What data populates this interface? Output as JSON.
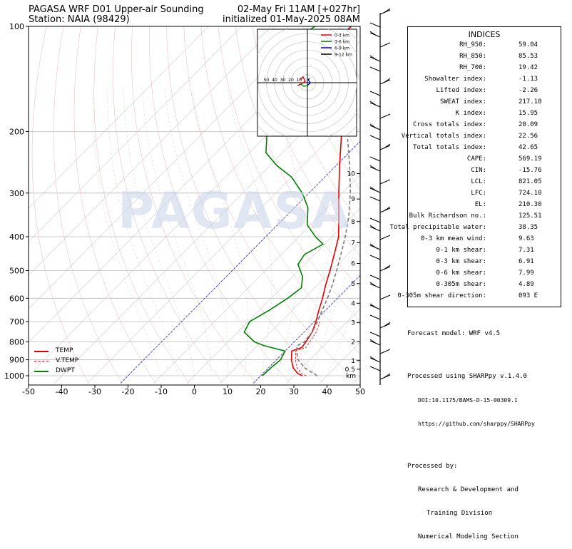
{
  "header": {
    "title_left": "PAGASA WRF D01 Upper-air Sounding",
    "station": "Station: NAIA (98429)",
    "valid": "02-May Fri 11AM [+027hr]",
    "init": "initialized 01-May-2025 08AM"
  },
  "watermark": "PAGASA",
  "chart_data": {
    "type": "line",
    "subtype": "skew-t log-p sounding",
    "xlabel": "",
    "ylabel": "",
    "x_ticks": [
      -50,
      -40,
      -30,
      -20,
      -10,
      0,
      10,
      20,
      30,
      40,
      50
    ],
    "y_ticks": [
      100,
      200,
      300,
      400,
      500,
      600,
      700,
      800,
      900,
      1000
    ],
    "xlim": [
      -50,
      50
    ],
    "ylim": [
      1050,
      100
    ],
    "y_scale": "log",
    "height_km_labels": [
      "0.5",
      "1",
      "2",
      "3",
      "4",
      "5",
      "6",
      "7",
      "8",
      "9",
      "10"
    ],
    "height_km_unit": "km",
    "legend": [
      {
        "name": "TEMP",
        "color": "#e00000",
        "style": "solid"
      },
      {
        "name": "V.TEMP",
        "color": "#e00000",
        "style": "dashed"
      },
      {
        "name": "DWPT",
        "color": "#008000",
        "style": "solid"
      }
    ],
    "legend_position": "bottom-left",
    "series": [
      {
        "name": "TEMP",
        "color": "#e00000",
        "points": [
          [
            1000,
            32.5
          ],
          [
            985,
            30.5
          ],
          [
            950,
            27.5
          ],
          [
            900,
            24.5
          ],
          [
            850,
            22.0
          ],
          [
            830,
            24.0
          ],
          [
            800,
            23.5
          ],
          [
            750,
            22.5
          ],
          [
            700,
            20.5
          ],
          [
            650,
            18.0
          ],
          [
            600,
            15.5
          ],
          [
            550,
            12.5
          ],
          [
            500,
            9.5
          ],
          [
            450,
            6.0
          ],
          [
            400,
            2.0
          ],
          [
            350,
            -4.0
          ],
          [
            300,
            -11.0
          ],
          [
            250,
            -19.0
          ],
          [
            200,
            -28.5
          ],
          [
            180,
            -34.0
          ],
          [
            160,
            -41.0
          ],
          [
            140,
            -49.0
          ],
          [
            120,
            -56.0
          ],
          [
            110,
            -58.0
          ],
          [
            100,
            -57.0
          ]
        ]
      },
      {
        "name": "DWPT",
        "color": "#008000",
        "points": [
          [
            1000,
            20.5
          ],
          [
            950,
            20.7
          ],
          [
            900,
            21.2
          ],
          [
            850,
            20.0
          ],
          [
            820,
            12.0
          ],
          [
            800,
            8.0
          ],
          [
            750,
            2.0
          ],
          [
            700,
            0.5
          ],
          [
            650,
            3.0
          ],
          [
            600,
            5.0
          ],
          [
            560,
            6.0
          ],
          [
            520,
            3.0
          ],
          [
            480,
            -2.0
          ],
          [
            450,
            -3.0
          ],
          [
            420,
            -0.5
          ],
          [
            400,
            -5.0
          ],
          [
            370,
            -11.0
          ],
          [
            330,
            -16.0
          ],
          [
            300,
            -22.0
          ],
          [
            270,
            -30.0
          ],
          [
            250,
            -38.0
          ],
          [
            230,
            -45.0
          ],
          [
            200,
            -51.0
          ],
          [
            170,
            -56.0
          ],
          [
            150,
            -59.0
          ],
          [
            130,
            -63.0
          ],
          [
            120,
            -68.0
          ],
          [
            110,
            -70.0
          ],
          [
            100,
            -68.0
          ]
        ]
      },
      {
        "name": "PARCEL",
        "color": "#7a7a7a",
        "points": [
          [
            1000,
            37.0
          ],
          [
            950,
            31.0
          ],
          [
            900,
            26.5
          ],
          [
            850,
            23.5
          ],
          [
            821,
            22.0
          ],
          [
            800,
            23.0
          ],
          [
            750,
            22.5
          ],
          [
            700,
            21.0
          ],
          [
            650,
            19.0
          ],
          [
            600,
            17.0
          ],
          [
            550,
            14.5
          ],
          [
            500,
            11.5
          ],
          [
            450,
            8.0
          ],
          [
            400,
            4.0
          ],
          [
            350,
            -1.0
          ],
          [
            300,
            -7.5
          ],
          [
            250,
            -16.0
          ],
          [
            210,
            -24.5
          ]
        ]
      }
    ]
  },
  "hodograph": {
    "rings": [
      "10",
      "20",
      "30",
      "40",
      "50"
    ],
    "legend": [
      {
        "name": "0-3 km",
        "color": "#e00000"
      },
      {
        "name": "3-6 km",
        "color": "#008000"
      },
      {
        "name": "6-9 km",
        "color": "#0000cc"
      },
      {
        "name": "9-12 km",
        "color": "#000000"
      }
    ]
  },
  "indices": {
    "title": "INDICES",
    "rows": [
      {
        "k": "RH_950:",
        "v": "59.04"
      },
      {
        "k": "RH_850:",
        "v": "85.53"
      },
      {
        "k": "RH_700:",
        "v": "19.42"
      },
      {
        "k": "Showalter index:",
        "v": "-1.13"
      },
      {
        "k": "Lifted index:",
        "v": "-2.26"
      },
      {
        "k": "SWEAT index:",
        "v": "217.18"
      },
      {
        "k": "K index:",
        "v": "15.95"
      },
      {
        "k": "Cross totals index:",
        "v": "20.09"
      },
      {
        "k": "Vertical totals index:",
        "v": "22.56"
      },
      {
        "k": "Total totals index:",
        "v": "42.65"
      },
      {
        "k": "CAPE:",
        "v": "569.19"
      },
      {
        "k": "CIN:",
        "v": "-15.76"
      },
      {
        "k": "LCL:",
        "v": "821.05"
      },
      {
        "k": "LFC:",
        "v": "724.10"
      },
      {
        "k": "EL:",
        "v": "210.30"
      },
      {
        "k": "Bulk Richardson no.:",
        "v": "125.51"
      },
      {
        "k": "Total precipitable water:",
        "v": "38.35"
      },
      {
        "k": "0-3 km mean wind:",
        "v": "9.63"
      },
      {
        "k": "0-1 km shear:",
        "v": "7.31"
      },
      {
        "k": "0-3 km shear:",
        "v": "6.91"
      },
      {
        "k": "0-6 km shear:",
        "v": "7.99"
      },
      {
        "k": "0-305m shear:",
        "v": "4.89"
      },
      {
        "k": "0-305m shear direction:",
        "v": "093 E"
      }
    ]
  },
  "notes": {
    "forecast": "Forecast model: WRF v4.5",
    "processed": "Processed using SHARPpy v.1.4.0",
    "doi": "DOI:10.1175/BAMS-D-15-00309.1",
    "url": "https://github.com/sharppy/SHARPpy",
    "by": "Processed by:",
    "org1": "Research & Development and",
    "org2": "Training Division",
    "org3": "Numerical Modeling Section"
  }
}
